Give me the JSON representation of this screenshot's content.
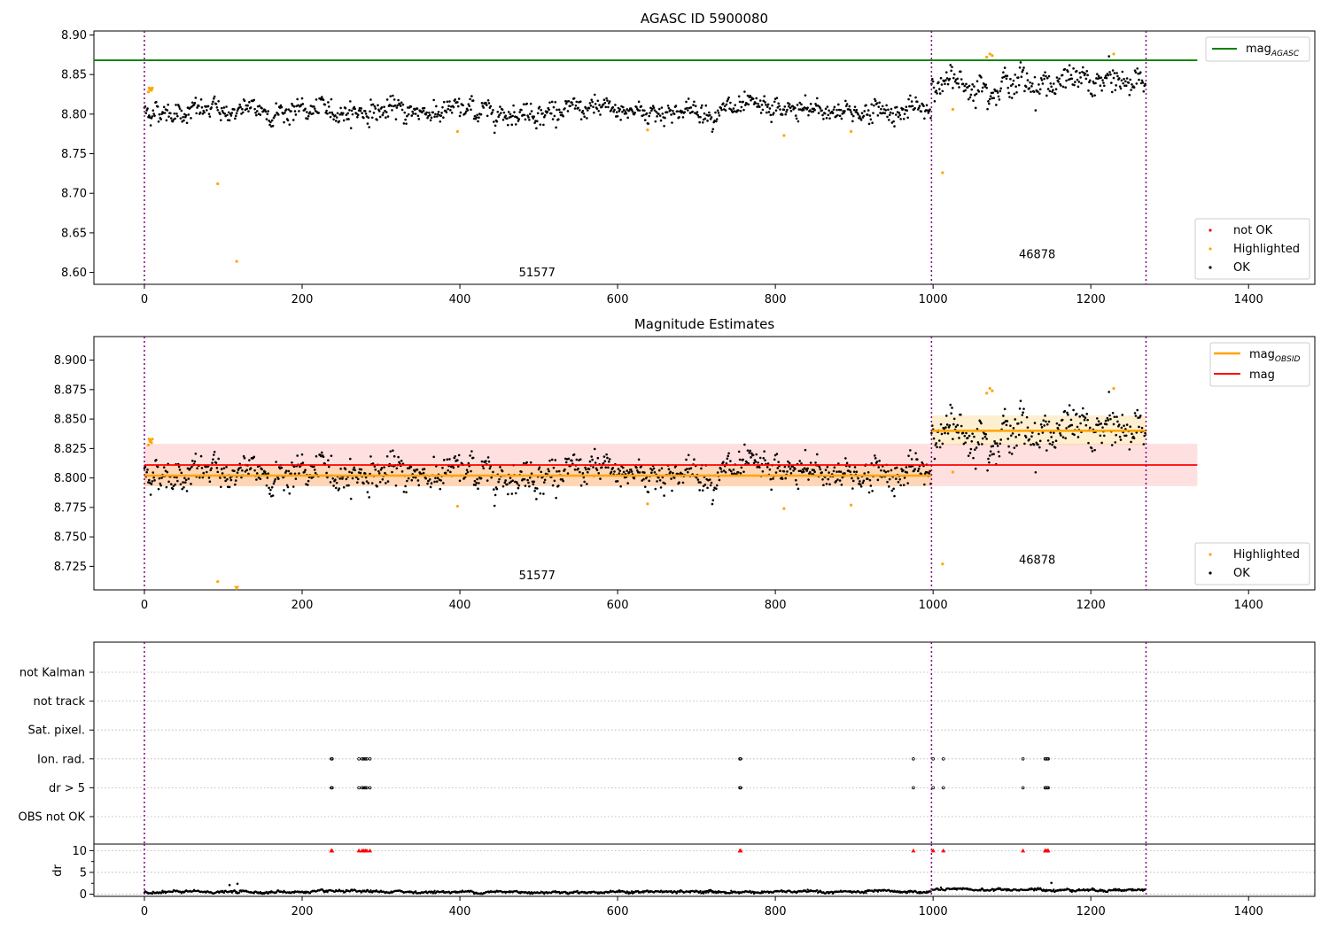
{
  "chart_data": [
    {
      "type": "scatter",
      "title": "AGASC ID 5900080",
      "xlim": [
        -64,
        1484
      ],
      "ylim": [
        8.585,
        8.905
      ],
      "xticks": [
        0,
        200,
        400,
        600,
        800,
        1000,
        1200,
        1400
      ],
      "yticks": [
        8.6,
        8.65,
        8.7,
        8.75,
        8.8,
        8.85,
        8.9
      ],
      "ytick_labels": [
        "8.60",
        "8.65",
        "8.70",
        "8.75",
        "8.80",
        "8.85",
        "8.90"
      ],
      "obs_boundaries": [
        0,
        998,
        1270
      ],
      "hlines": [
        {
          "name": "mag",
          "sub": "AGASC",
          "y": 8.868,
          "x": [
            -64,
            1335
          ],
          "color": "#008000"
        }
      ],
      "segments": [
        {
          "x0": 0,
          "x1": 998,
          "mean": 8.804,
          "std": 0.009
        },
        {
          "x0": 998,
          "x1": 1270,
          "mean": 8.84,
          "std": 0.012
        }
      ],
      "highlighted": [
        [
          5,
          8.828
        ],
        [
          6,
          8.833
        ],
        [
          7,
          8.831
        ],
        [
          8,
          8.832
        ],
        [
          9,
          8.83
        ],
        [
          10,
          8.833
        ],
        [
          93,
          8.712
        ],
        [
          117,
          8.614
        ],
        [
          397,
          8.778
        ],
        [
          638,
          8.78
        ],
        [
          811,
          8.773
        ],
        [
          896,
          8.778
        ],
        [
          1012,
          8.726
        ],
        [
          1025,
          8.806
        ],
        [
          1068,
          8.872
        ],
        [
          1072,
          8.876
        ],
        [
          1075,
          8.874
        ],
        [
          1229,
          8.876
        ]
      ],
      "obsid_labels": [
        {
          "text": "51577",
          "x": 498,
          "y": 8.595
        },
        {
          "text": "46878",
          "x": 1132,
          "y": 8.618
        }
      ],
      "legend_lines": [
        "mag"
      ],
      "legend_points": [
        {
          "label": "not OK",
          "color": "#ff0000"
        },
        {
          "label": "Highlighted",
          "color": "#ffa500"
        },
        {
          "label": "OK",
          "color": "#000000"
        }
      ]
    },
    {
      "type": "scatter",
      "title": "Magnitude Estimates",
      "xlim": [
        -64,
        1484
      ],
      "ylim": [
        8.705,
        8.92
      ],
      "xticks": [
        0,
        200,
        400,
        600,
        800,
        1000,
        1200,
        1400
      ],
      "yticks": [
        8.725,
        8.75,
        8.775,
        8.8,
        8.825,
        8.85,
        8.875,
        8.9
      ],
      "ytick_labels": [
        "8.725",
        "8.750",
        "8.775",
        "8.800",
        "8.825",
        "8.850",
        "8.875",
        "8.900"
      ],
      "obs_boundaries": [
        0,
        998,
        1270
      ],
      "mag_line": {
        "y": 8.811,
        "band": [
          8.793,
          8.829
        ],
        "x": [
          0,
          1335
        ],
        "color": "#ff0000"
      },
      "obsid_mags": [
        {
          "x0": 0,
          "x1": 998,
          "y": 8.802,
          "band": [
            8.793,
            8.811
          ]
        },
        {
          "x0": 998,
          "x1": 1270,
          "y": 8.84,
          "band": [
            8.828,
            8.853
          ]
        }
      ],
      "highlighted": [
        [
          5,
          8.828
        ],
        [
          6,
          8.833
        ],
        [
          7,
          8.831
        ],
        [
          8,
          8.832
        ],
        [
          9,
          8.83
        ],
        [
          10,
          8.833
        ],
        [
          93,
          8.712
        ],
        [
          117,
          8.706
        ],
        [
          397,
          8.776
        ],
        [
          638,
          8.778
        ],
        [
          811,
          8.774
        ],
        [
          896,
          8.777
        ],
        [
          1012,
          8.727
        ],
        [
          1025,
          8.805
        ],
        [
          1068,
          8.872
        ],
        [
          1072,
          8.876
        ],
        [
          1075,
          8.874
        ],
        [
          1229,
          8.876
        ]
      ],
      "obsid_labels": [
        {
          "text": "51577",
          "x": 498,
          "y": 8.714
        },
        {
          "text": "46878",
          "x": 1132,
          "y": 8.727
        }
      ],
      "legend_lines": [
        "mag",
        "mag"
      ],
      "legend_points": [
        {
          "label": "Highlighted",
          "color": "#ffa500"
        },
        {
          "label": "OK",
          "color": "#000000"
        }
      ]
    },
    {
      "type": "scatter",
      "xlim": [
        -64,
        1484
      ],
      "xticks": [
        0,
        200,
        400,
        600,
        800,
        1000,
        1200,
        1400
      ],
      "obs_boundaries": [
        0,
        998,
        1270
      ],
      "flag_rows": [
        "not Kalman",
        "not track",
        "Sat. pixel.",
        "Ion. rad.",
        "dr > 5",
        "OBS not OK"
      ],
      "flagged_x": [
        237,
        238,
        272,
        276,
        278,
        280,
        282,
        286,
        755,
        756,
        975,
        1000,
        1013,
        1114,
        1142,
        1143,
        1145,
        1146
      ],
      "dr_label": "dr",
      "dr_ylim": [
        -0.5,
        11.5
      ],
      "dr_yticks": [
        0,
        5,
        10
      ],
      "dr_clip": 10,
      "dr_typical": 0.5,
      "dr_outliers": [
        [
          108,
          2.1
        ],
        [
          118,
          2.4
        ],
        [
          1150,
          2.6
        ]
      ]
    }
  ]
}
